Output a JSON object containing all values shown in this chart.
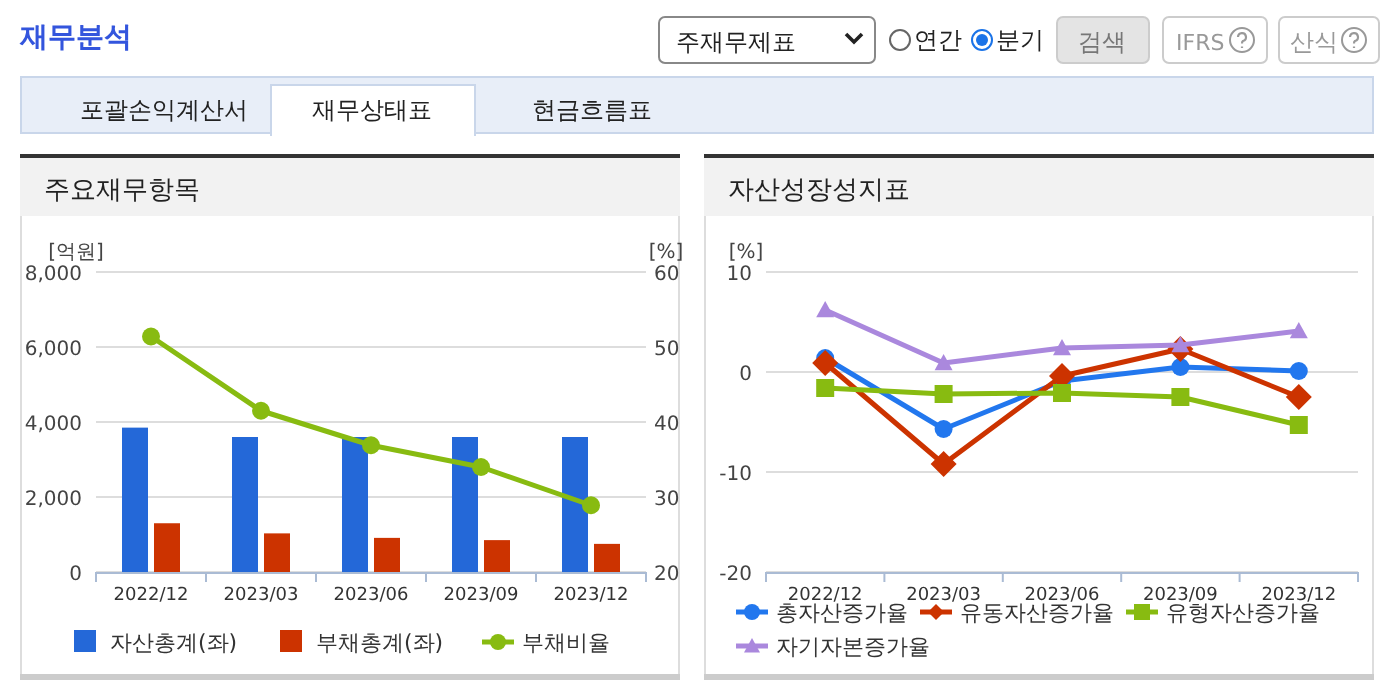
{
  "chart_data": [
    {
      "type": "bar",
      "title": "주요재무항목",
      "ylabel": "[억원]",
      "y2label": "[%]",
      "annotations": [
        "재무분석",
        "주재무제표",
        "연간",
        "분기",
        "검색",
        "IFRS",
        "산식",
        "포괄손익계산서",
        "재무상태표",
        "현금흐름표"
      ],
      "categories": [
        "2022/12",
        "2023/03",
        "2023/06",
        "2023/09",
        "2023/12"
      ],
      "series": [
        {
          "name": "자산총계(좌)",
          "color": "#2468d8",
          "values": [
            3850,
            3600,
            3600,
            3600,
            3600
          ]
        },
        {
          "name": "부채총계(좌)",
          "color": "#cc3300",
          "values": [
            1300,
            1030,
            910,
            850,
            750
          ]
        },
        {
          "name": "부채비율",
          "type": "line",
          "axis": "y2",
          "color": "#88bb11",
          "marker": "circle",
          "values": [
            51.4,
            41.5,
            36.9,
            34.0,
            28.9
          ]
        }
      ],
      "ylim": [
        0,
        8000
      ],
      "yticks": [
        0,
        {
          "value": 2000,
          "label": "2,000"
        },
        {
          "value": 4000,
          "label": "4,000"
        },
        {
          "value": 6000,
          "label": "6,000"
        },
        {
          "value": 8000,
          "label": "8,000"
        }
      ],
      "y2lim": [
        20,
        60
      ],
      "y2ticks": [
        20,
        30,
        40,
        50,
        60
      ],
      "grid": "y",
      "legend": "bottom"
    },
    {
      "type": "line",
      "title": "자산성장성지표",
      "ylabel": "[%]",
      "categories": [
        "2022/12",
        "2023/03",
        "2023/06",
        "2023/09",
        "2023/12"
      ],
      "series": [
        {
          "name": "총자산증가율",
          "color": "#2277ee",
          "marker": "circle",
          "values": [
            1.4,
            -5.7,
            -0.9,
            0.5,
            0.1
          ]
        },
        {
          "name": "유동자산증가율",
          "color": "#cc3300",
          "marker": "diamond",
          "values": [
            0.9,
            -9.2,
            -0.4,
            2.3,
            -2.5
          ]
        },
        {
          "name": "유형자산증가율",
          "color": "#88bb11",
          "marker": "square",
          "values": [
            -1.6,
            -2.2,
            -2.1,
            -2.5,
            -5.3
          ]
        },
        {
          "name": "자기자본증가율",
          "color": "#aa88dd",
          "marker": "triangle",
          "values": [
            6.2,
            0.9,
            2.4,
            2.7,
            4.1
          ]
        }
      ],
      "ylim": [
        -20,
        10
      ],
      "yticks": [
        -20,
        -10,
        0,
        10
      ],
      "grid": "y",
      "legend": "bottom"
    }
  ]
}
